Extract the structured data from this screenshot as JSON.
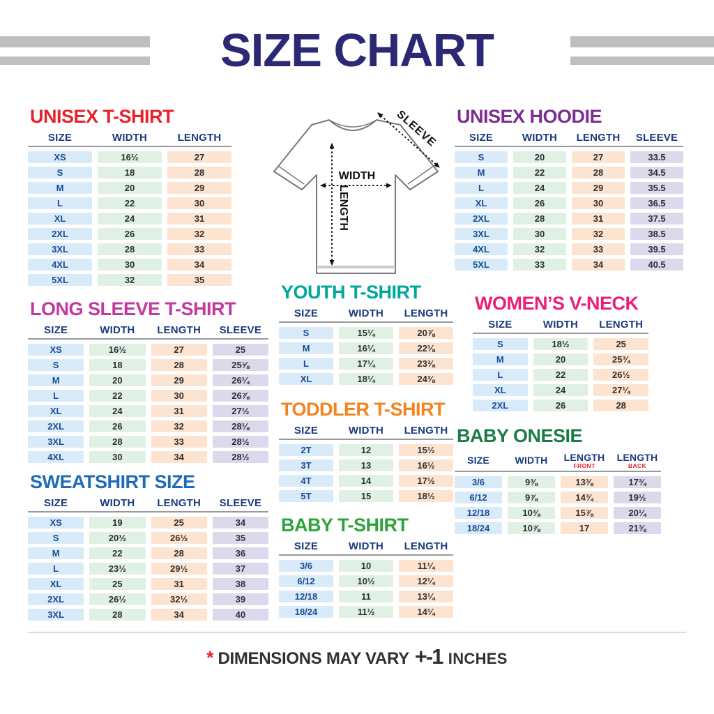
{
  "page": {
    "title": "SIZE CHART",
    "title_color": "#2B2973",
    "stripe_color": "#BDBFC1"
  },
  "diagram": {
    "width_label": "WIDTH",
    "length_label": "LENGTH",
    "sleeve_label": "SLEEVE"
  },
  "footer": {
    "asterisk": "*",
    "text": "DIMENSIONS MAY VARY",
    "tolerance": "+-1",
    "unit": "INCHES"
  },
  "colors": {
    "column_fills": [
      "#D9EAF8",
      "#E0F0E5",
      "#FDE4D0",
      "#DCD9ED"
    ],
    "header_text": "#1B3B7D",
    "size_text": "#1C4C94",
    "value_text": "#2F3032",
    "sub_label": "#E8232D"
  },
  "tables": [
    {
      "id": "unisex_tshirt",
      "title": "UNISEX T-SHIRT",
      "title_color": "#E8222B",
      "columns": [
        {
          "label": "SIZE"
        },
        {
          "label": "WIDTH"
        },
        {
          "label": "LENGTH"
        }
      ],
      "rows": [
        [
          "XS",
          "16½",
          "27"
        ],
        [
          "S",
          "18",
          "28"
        ],
        [
          "M",
          "20",
          "29"
        ],
        [
          "L",
          "22",
          "30"
        ],
        [
          "XL",
          "24",
          "31"
        ],
        [
          "2XL",
          "26",
          "32"
        ],
        [
          "3XL",
          "28",
          "33"
        ],
        [
          "4XL",
          "30",
          "34"
        ],
        [
          "5XL",
          "32",
          "35"
        ]
      ]
    },
    {
      "id": "long_sleeve",
      "title": "LONG SLEEVE T-SHIRT",
      "title_color": "#C4399F",
      "columns": [
        {
          "label": "SIZE"
        },
        {
          "label": "WIDTH"
        },
        {
          "label": "LENGTH"
        },
        {
          "label": "SLEEVE"
        }
      ],
      "rows": [
        [
          "XS",
          "16½",
          "27",
          "25"
        ],
        [
          "S",
          "18",
          "28",
          "25⅝"
        ],
        [
          "M",
          "20",
          "29",
          "26¼"
        ],
        [
          "L",
          "22",
          "30",
          "26⅞"
        ],
        [
          "XL",
          "24",
          "31",
          "27½"
        ],
        [
          "2XL",
          "26",
          "32",
          "28⅛"
        ],
        [
          "3XL",
          "28",
          "33",
          "28½"
        ],
        [
          "4XL",
          "30",
          "34",
          "28½"
        ]
      ]
    },
    {
      "id": "sweatshirt",
      "title": "SWEATSHIRT SIZE",
      "title_color": "#1E6CB8",
      "columns": [
        {
          "label": "SIZE"
        },
        {
          "label": "WIDTH"
        },
        {
          "label": "LENGTH"
        },
        {
          "label": "SLEEVE"
        }
      ],
      "rows": [
        [
          "XS",
          "19",
          "25",
          "34"
        ],
        [
          "S",
          "20½",
          "26½",
          "35"
        ],
        [
          "M",
          "22",
          "28",
          "36"
        ],
        [
          "L",
          "23½",
          "29½",
          "37"
        ],
        [
          "XL",
          "25",
          "31",
          "38"
        ],
        [
          "2XL",
          "26½",
          "32½",
          "39"
        ],
        [
          "3XL",
          "28",
          "34",
          "40"
        ]
      ]
    },
    {
      "id": "youth_tshirt",
      "title": "YOUTH T-SHIRT",
      "title_color": "#00A79B",
      "columns": [
        {
          "label": "SIZE"
        },
        {
          "label": "WIDTH"
        },
        {
          "label": "LENGTH"
        }
      ],
      "rows": [
        [
          "S",
          "15¼",
          "20⅞"
        ],
        [
          "M",
          "16¼",
          "22⅛"
        ],
        [
          "L",
          "17¼",
          "23⅜"
        ],
        [
          "XL",
          "18¼",
          "24⅜"
        ]
      ]
    },
    {
      "id": "toddler_tshirt",
      "title": "TODDLER T-SHIRT",
      "title_color": "#F5821E",
      "columns": [
        {
          "label": "SIZE"
        },
        {
          "label": "WIDTH"
        },
        {
          "label": "LENGTH"
        }
      ],
      "rows": [
        [
          "2T",
          "12",
          "15½"
        ],
        [
          "3T",
          "13",
          "16½"
        ],
        [
          "4T",
          "14",
          "17½"
        ],
        [
          "5T",
          "15",
          "18½"
        ]
      ]
    },
    {
      "id": "baby_tshirt",
      "title": "BABY T-SHIRT",
      "title_color": "#2FA33C",
      "columns": [
        {
          "label": "SIZE"
        },
        {
          "label": "WIDTH"
        },
        {
          "label": "LENGTH"
        }
      ],
      "rows": [
        [
          "3/6",
          "10",
          "11¼"
        ],
        [
          "6/12",
          "10½",
          "12¼"
        ],
        [
          "12/18",
          "11",
          "13¼"
        ],
        [
          "18/24",
          "11½",
          "14¼"
        ]
      ]
    },
    {
      "id": "unisex_hoodie",
      "title": "UNISEX HOODIE",
      "title_color": "#7B2D90",
      "columns": [
        {
          "label": "SIZE"
        },
        {
          "label": "WIDTH"
        },
        {
          "label": "LENGTH"
        },
        {
          "label": "SLEEVE"
        }
      ],
      "rows": [
        [
          "S",
          "20",
          "27",
          "33.5"
        ],
        [
          "M",
          "22",
          "28",
          "34.5"
        ],
        [
          "L",
          "24",
          "29",
          "35.5"
        ],
        [
          "XL",
          "26",
          "30",
          "36.5"
        ],
        [
          "2XL",
          "28",
          "31",
          "37.5"
        ],
        [
          "3XL",
          "30",
          "32",
          "38.5"
        ],
        [
          "4XL",
          "32",
          "33",
          "39.5"
        ],
        [
          "5XL",
          "33",
          "34",
          "40.5"
        ]
      ]
    },
    {
      "id": "womens_vneck",
      "title": "WOMEN’S V-NECK",
      "title_color": "#EE1D7A",
      "columns": [
        {
          "label": "SIZE"
        },
        {
          "label": "WIDTH"
        },
        {
          "label": "LENGTH"
        }
      ],
      "rows": [
        [
          "S",
          "18½",
          "25"
        ],
        [
          "M",
          "20",
          "25¾"
        ],
        [
          "L",
          "22",
          "26½"
        ],
        [
          "XL",
          "24",
          "27¼"
        ],
        [
          "2XL",
          "26",
          "28"
        ]
      ]
    },
    {
      "id": "baby_onesie",
      "title": "BABY ONESIE",
      "title_color": "#1B7B46",
      "columns": [
        {
          "label": "SIZE"
        },
        {
          "label": "WIDTH"
        },
        {
          "label": "LENGTH",
          "sub": "FRONT"
        },
        {
          "label": "LENGTH",
          "sub": "BACK"
        }
      ],
      "rows": [
        [
          "3/6",
          "9⅜",
          "13⅜",
          "17¾"
        ],
        [
          "6/12",
          "9⅞",
          "14¾",
          "19½"
        ],
        [
          "12/18",
          "10⅜",
          "15⅞",
          "20¼"
        ],
        [
          "18/24",
          "10⅞",
          "17",
          "21⅜"
        ]
      ]
    }
  ]
}
